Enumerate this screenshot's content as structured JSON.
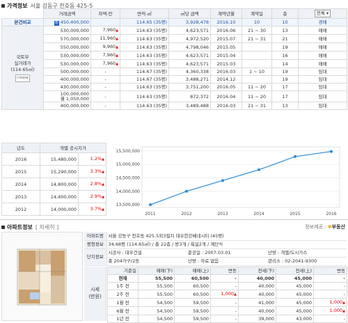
{
  "price_section": {
    "title": "가격정보",
    "address": "서울 강동구 천호동 425-5",
    "headers": [
      "거래금액",
      "차액-만",
      "면적-㎡",
      "㎡당 금액",
      "계약년월",
      "계약일",
      "층",
      "전체"
    ],
    "compare_label": "본건비교",
    "compare_row": {
      "badge": "최",
      "price": "450,400,000",
      "diff": "",
      "area": "114.65 (35평)",
      "unit": "3,928,478",
      "ym": "2016.10",
      "day": "10",
      "floor": "10",
      "type": "경매"
    },
    "side_label_1": "국토부",
    "side_label_2": "실거래가",
    "side_label_3": "(114.65㎡)",
    "side_badge": "i-more",
    "rows": [
      {
        "price": "530,000,000",
        "diff": "7,960",
        "diff_dir": "up",
        "area": "114.63 (35평)",
        "unit": "4,623,571",
        "ym": "2016.06",
        "day": "21 ~ 30",
        "floor": "13",
        "type": "매매"
      },
      {
        "price": "570,000,000",
        "diff": "11,960",
        "diff_dir": "up",
        "area": "114.63 (35평)",
        "unit": "4,972,520",
        "ym": "2015.07",
        "day": "21 ~ 31",
        "floor": "21",
        "type": "매매"
      },
      {
        "price": "550,000,000",
        "diff": "9,960",
        "diff_dir": "up",
        "area": "114.63 (35평)",
        "unit": "4,798,046",
        "ym": "2015.05",
        "day": "",
        "floor": "19",
        "type": "매매"
      },
      {
        "price": "530,000,000",
        "diff": "7,960",
        "diff_dir": "up",
        "area": "114.63 (35평)",
        "unit": "4,623,571",
        "ym": "2015.04",
        "day": "",
        "floor": "16",
        "type": "매매"
      },
      {
        "price": "530,000,000",
        "diff": "7,960",
        "diff_dir": "up",
        "area": "114.63 (35평)",
        "unit": "4,623,571",
        "ym": "2015.03",
        "day": "",
        "floor": "14",
        "type": "매매"
      },
      {
        "price": "500,000,000",
        "diff": "-",
        "diff_dir": "",
        "area": "114.67 (35평)",
        "unit": "4,360,338",
        "ym": "2016.03",
        "day": "1 ~ 10",
        "floor": "19",
        "type": "임대"
      },
      {
        "price": "400,000,000",
        "diff": "-",
        "diff_dir": "",
        "area": "114.67 (35평)",
        "unit": "3,488,271",
        "ym": "2014.12",
        "day": "",
        "floor": "19",
        "type": "임대"
      },
      {
        "price": "430,000,000",
        "diff": "-",
        "diff_dir": "",
        "area": "114.63 (35평)",
        "unit": "3,751,200",
        "ym": "2016.05",
        "day": "11 ~ 20",
        "floor": "17",
        "type": "임대"
      },
      {
        "price": "100,000,000",
        "price2": "월 1,050,000",
        "diff": "-",
        "diff_dir": "",
        "area": "114.63 (35평)",
        "unit": "872,372",
        "ym": "2016.04",
        "day": "11 ~ 20",
        "floor": "17",
        "type": "임대"
      },
      {
        "price": "400,000,000",
        "diff": "-",
        "diff_dir": "",
        "area": "114.63 (35평)",
        "unit": "3,489,488",
        "ym": "2016.03",
        "day": "21 ~ 31",
        "floor": "13",
        "type": "임대"
      }
    ]
  },
  "gongsi": {
    "headers": [
      "년도",
      "개별 공시지가"
    ],
    "rows": [
      {
        "year": "2016",
        "value": "15,480,000",
        "pct": "1.2%"
      },
      {
        "year": "2015",
        "value": "15,290,000",
        "pct": "3.3%"
      },
      {
        "year": "2014",
        "value": "14,800,000",
        "pct": "2.8%"
      },
      {
        "year": "2013",
        "value": "14,400,000",
        "pct": "2.9%"
      },
      {
        "year": "2012",
        "value": "14,000,000",
        "pct": "3.7%"
      }
    ]
  },
  "chart_data": {
    "type": "line",
    "categories": [
      "2011",
      "2012",
      "2013",
      "2014",
      "2015",
      "2016"
    ],
    "series": [
      {
        "values": [
          13500000,
          14000000,
          14400000,
          14800000,
          15290000,
          15480000
        ]
      }
    ],
    "y_ticks": [
      "15,500,000",
      "15,000,000",
      "14,500,000",
      "14,000,000",
      "13,500,000"
    ],
    "ylim": [
      13400000,
      15650000
    ],
    "line_color": "#2b8ad6"
  },
  "apt_section": {
    "title": "아파트정보",
    "detail_link": "[ 자세히 ]",
    "provider_label": "정보제공 :",
    "provider_name": "부동산",
    "name_label": "아파트명",
    "name_value": "서울 강동구 천호동 425-5외3필지 대우한강베네시티 (45평)",
    "plan_label": "평형정보",
    "plan_value": "34.68평 (114.65㎡) / 총 22층 / 방3개 / 욕실2개 / 계단식",
    "complex_label": "단지정보",
    "builder": "시공사 : 대우건설",
    "built": "준공일 : 2007.03.01",
    "heating": "난방 : 개별/도시가스",
    "households": "총 204가구/2동",
    "parking": "난방 : 자료 없음",
    "office": "관리소 : 02-2041-9300",
    "market_label_1": "시세",
    "market_label_2": "(만원)",
    "price_headers": [
      "기준일",
      "매매(下)",
      "매매(上)",
      "변동",
      "전세(下)",
      "전세(上)",
      "변동"
    ],
    "price_rows": [
      {
        "date": "현재",
        "s_low": "55,500",
        "s_high": "60,500",
        "s_chg": "-",
        "j_low": "40,000",
        "j_high": "45,000",
        "j_chg": "-",
        "bold": true
      },
      {
        "date": "1주 전",
        "s_low": "55,500",
        "s_high": "60,500",
        "s_chg": "-",
        "j_low": "40,000",
        "j_high": "45,000",
        "j_chg": "-"
      },
      {
        "date": "2주 전",
        "s_low": "55,500",
        "s_high": "60,500",
        "s_chg": "1,000",
        "j_low": "40,000",
        "j_high": "45,000",
        "j_chg": "-"
      },
      {
        "date": "1월 전",
        "s_low": "54,500",
        "s_high": "59,500",
        "s_chg": "-",
        "j_low": "41,000",
        "j_high": "45,000",
        "j_chg": "1,000"
      },
      {
        "date": "6월 전",
        "s_low": "54,500",
        "s_high": "59,500",
        "s_chg": "-",
        "j_low": "40,000",
        "j_high": "45,000",
        "j_chg": "1,000"
      },
      {
        "date": "1년 전",
        "s_low": "54,500",
        "s_high": "59,500",
        "s_chg": "-",
        "j_low": "39,000",
        "j_high": "43,000",
        "j_chg": "-"
      }
    ]
  }
}
